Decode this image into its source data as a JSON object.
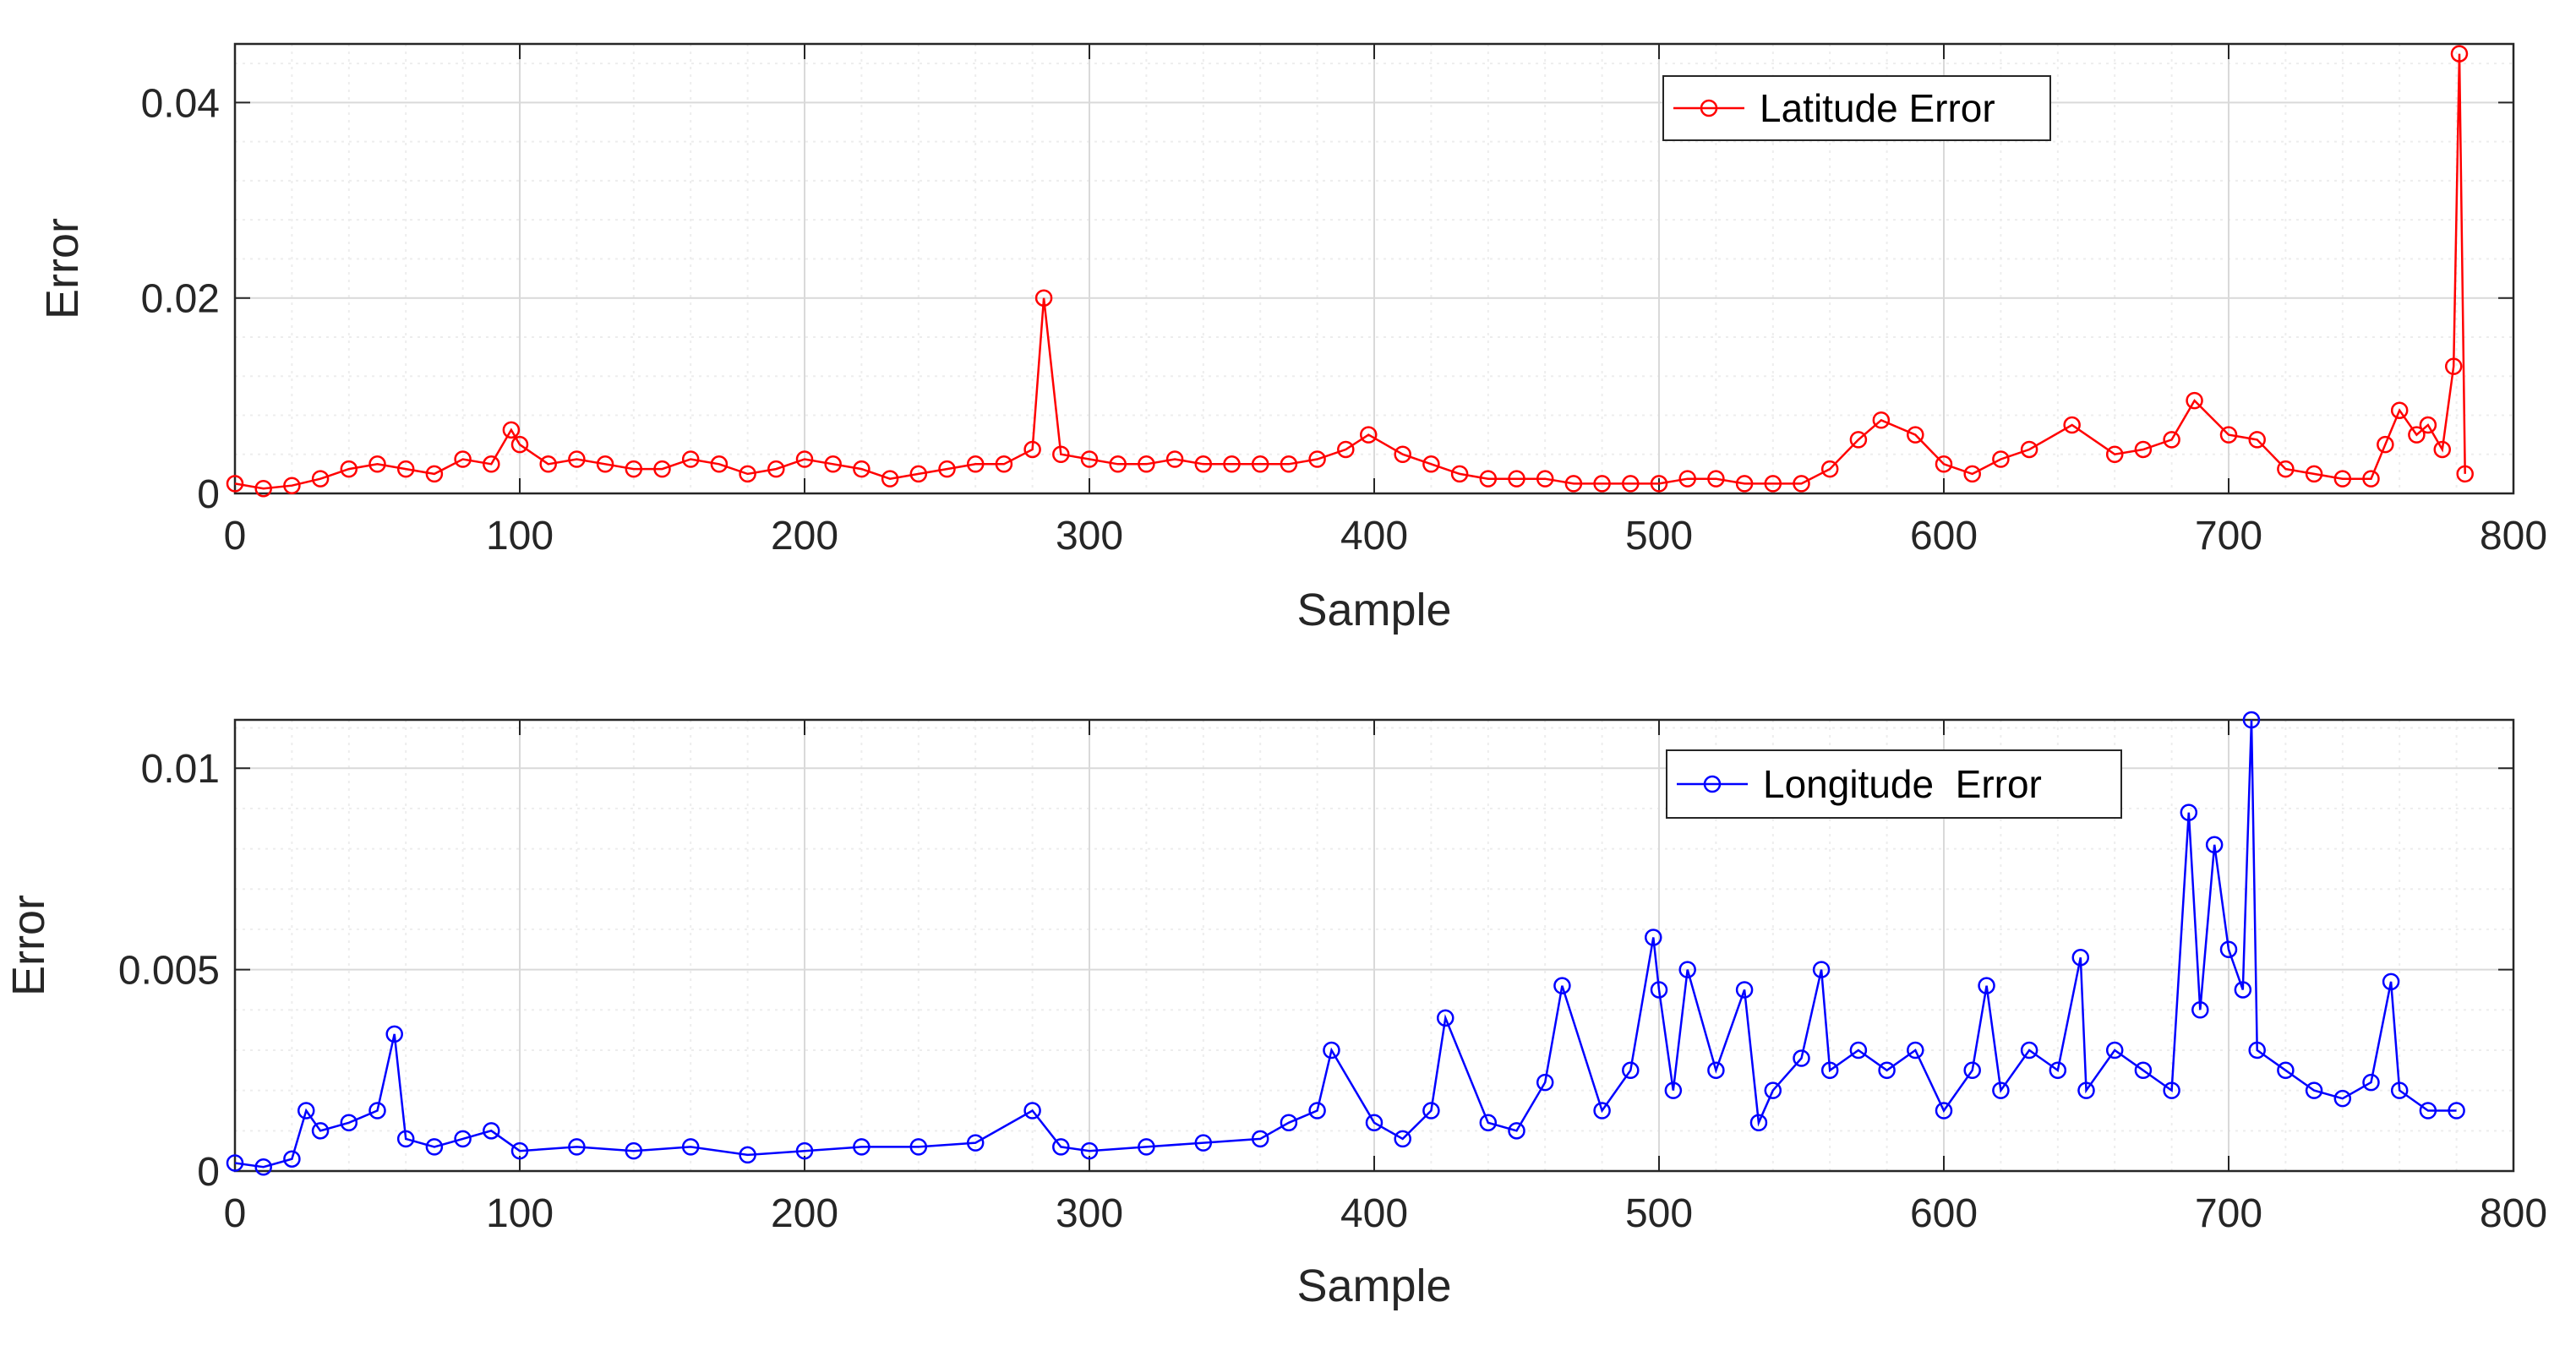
{
  "colors": {
    "series1": "#ff0000",
    "series2": "#0000ff",
    "grid_major": "#d9d9d9",
    "grid_minor": "#ededed",
    "axis": "#262626"
  },
  "chart_data": [
    {
      "type": "line",
      "marker": "circle",
      "title": "",
      "xlabel": "Sample",
      "ylabel": "Error",
      "xlim": [
        0,
        800
      ],
      "ylim": [
        0,
        0.046
      ],
      "xticks": [
        0,
        100,
        200,
        300,
        400,
        500,
        600,
        700,
        800
      ],
      "xtick_labels": [
        "0",
        "100",
        "200",
        "300",
        "400",
        "500",
        "600",
        "700",
        "800"
      ],
      "yticks": [
        0,
        0.02,
        0.04
      ],
      "ytick_labels": [
        "0",
        "0.02",
        "0.04"
      ],
      "grid": true,
      "legend_position": "top-right",
      "legend_label": "Latitude Error",
      "series": [
        {
          "name": "Latitude Error",
          "color": "#ff0000",
          "x": [
            0,
            10,
            20,
            30,
            40,
            50,
            60,
            70,
            80,
            90,
            97,
            100,
            110,
            120,
            130,
            140,
            150,
            160,
            170,
            180,
            190,
            200,
            210,
            220,
            230,
            240,
            250,
            260,
            270,
            280,
            284,
            290,
            300,
            310,
            320,
            330,
            340,
            350,
            360,
            370,
            380,
            390,
            398,
            410,
            420,
            430,
            440,
            450,
            460,
            470,
            480,
            490,
            500,
            510,
            520,
            530,
            540,
            550,
            560,
            570,
            578,
            590,
            600,
            610,
            620,
            630,
            645,
            660,
            670,
            680,
            688,
            700,
            710,
            720,
            730,
            740,
            750,
            755,
            760,
            766,
            770,
            775,
            779,
            781,
            783
          ],
          "y": [
            0.001,
            0.0005,
            0.0008,
            0.0015,
            0.0025,
            0.003,
            0.0025,
            0.002,
            0.0035,
            0.003,
            0.0065,
            0.005,
            0.003,
            0.0035,
            0.003,
            0.0025,
            0.0025,
            0.0035,
            0.003,
            0.002,
            0.0025,
            0.0035,
            0.003,
            0.0025,
            0.0015,
            0.002,
            0.0025,
            0.003,
            0.003,
            0.0045,
            0.02,
            0.004,
            0.0035,
            0.003,
            0.003,
            0.0035,
            0.003,
            0.003,
            0.003,
            0.003,
            0.0035,
            0.0045,
            0.006,
            0.004,
            0.003,
            0.002,
            0.0015,
            0.0015,
            0.0015,
            0.001,
            0.001,
            0.001,
            0.001,
            0.0015,
            0.0015,
            0.001,
            0.001,
            0.001,
            0.0025,
            0.0055,
            0.0075,
            0.006,
            0.003,
            0.002,
            0.0035,
            0.0045,
            0.007,
            0.004,
            0.0045,
            0.0055,
            0.0095,
            0.006,
            0.0055,
            0.0025,
            0.002,
            0.0015,
            0.0015,
            0.005,
            0.0085,
            0.006,
            0.007,
            0.0045,
            0.013,
            0.045,
            0.002
          ]
        }
      ]
    },
    {
      "type": "line",
      "marker": "circle",
      "title": "",
      "xlabel": "Sample",
      "ylabel": "Error",
      "xlim": [
        0,
        800
      ],
      "ylim": [
        0,
        0.0112
      ],
      "xticks": [
        0,
        100,
        200,
        300,
        400,
        500,
        600,
        700,
        800
      ],
      "xtick_labels": [
        "0",
        "100",
        "200",
        "300",
        "400",
        "500",
        "600",
        "700",
        "800"
      ],
      "yticks": [
        0,
        0.005,
        0.01
      ],
      "ytick_labels": [
        "0",
        "0.005",
        "0.01"
      ],
      "grid": true,
      "legend_position": "top-right",
      "legend_label": "Longitude  Error",
      "series": [
        {
          "name": "Longitude Error",
          "color": "#0000ff",
          "x": [
            0,
            10,
            20,
            25,
            30,
            40,
            50,
            56,
            60,
            70,
            80,
            90,
            100,
            120,
            140,
            160,
            180,
            200,
            220,
            240,
            260,
            280,
            290,
            300,
            320,
            340,
            360,
            370,
            380,
            385,
            400,
            410,
            420,
            425,
            440,
            450,
            460,
            466,
            480,
            490,
            498,
            500,
            505,
            510,
            520,
            530,
            535,
            540,
            550,
            557,
            560,
            570,
            580,
            590,
            600,
            610,
            615,
            620,
            630,
            640,
            648,
            650,
            660,
            670,
            680,
            686,
            690,
            695,
            700,
            705,
            708,
            710,
            720,
            730,
            740,
            750,
            757,
            760,
            770,
            780
          ],
          "y": [
            0.0002,
            0.0001,
            0.0003,
            0.0015,
            0.001,
            0.0012,
            0.0015,
            0.0034,
            0.0008,
            0.0006,
            0.0008,
            0.001,
            0.0005,
            0.0006,
            0.0005,
            0.0006,
            0.0004,
            0.0005,
            0.0006,
            0.0006,
            0.0007,
            0.0015,
            0.0006,
            0.0005,
            0.0006,
            0.0007,
            0.0008,
            0.0012,
            0.0015,
            0.003,
            0.0012,
            0.0008,
            0.0015,
            0.0038,
            0.0012,
            0.001,
            0.0022,
            0.0046,
            0.0015,
            0.0025,
            0.0058,
            0.0045,
            0.002,
            0.005,
            0.0025,
            0.0045,
            0.0012,
            0.002,
            0.0028,
            0.005,
            0.0025,
            0.003,
            0.0025,
            0.003,
            0.0015,
            0.0025,
            0.0046,
            0.002,
            0.003,
            0.0025,
            0.0053,
            0.002,
            0.003,
            0.0025,
            0.002,
            0.0089,
            0.004,
            0.0081,
            0.0055,
            0.0045,
            0.0112,
            0.003,
            0.0025,
            0.002,
            0.0018,
            0.0022,
            0.0047,
            0.002,
            0.0015,
            0.0015
          ]
        }
      ]
    }
  ]
}
